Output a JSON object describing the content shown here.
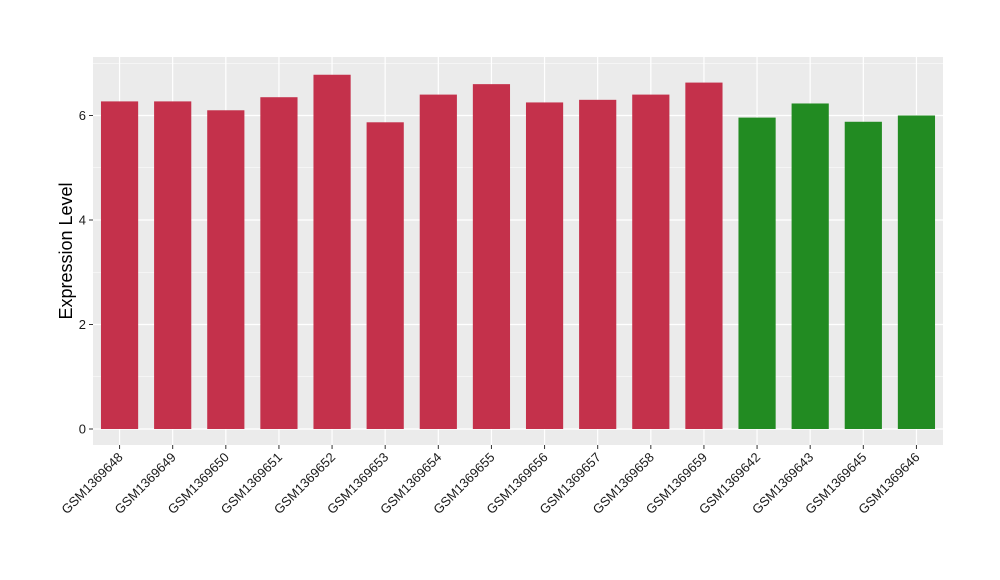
{
  "chart_data": {
    "type": "bar",
    "title": "",
    "xlabel": "",
    "ylabel": "Expression Level",
    "ylim": [
      0,
      7.1
    ],
    "yticks": [
      0,
      2,
      4,
      6
    ],
    "grid": true,
    "legend": "none",
    "colors": {
      "group_a": "#c4314b",
      "group_b": "#228b22",
      "panel": "#ebebeb",
      "grid": "#ffffff"
    },
    "categories": [
      "GSM1369648",
      "GSM1369649",
      "GSM1369650",
      "GSM1369651",
      "GSM1369652",
      "GSM1369653",
      "GSM1369654",
      "GSM1369655",
      "GSM1369656",
      "GSM1369657",
      "GSM1369658",
      "GSM1369659",
      "GSM1369642",
      "GSM1369643",
      "GSM1369645",
      "GSM1369646"
    ],
    "values": [
      6.27,
      6.27,
      6.1,
      6.35,
      6.78,
      5.87,
      6.4,
      6.6,
      6.25,
      6.3,
      6.4,
      6.63,
      5.96,
      6.23,
      5.88,
      6.0
    ],
    "bar_groups": [
      "group_a",
      "group_a",
      "group_a",
      "group_a",
      "group_a",
      "group_a",
      "group_a",
      "group_a",
      "group_a",
      "group_a",
      "group_a",
      "group_a",
      "group_b",
      "group_b",
      "group_b",
      "group_b"
    ]
  }
}
